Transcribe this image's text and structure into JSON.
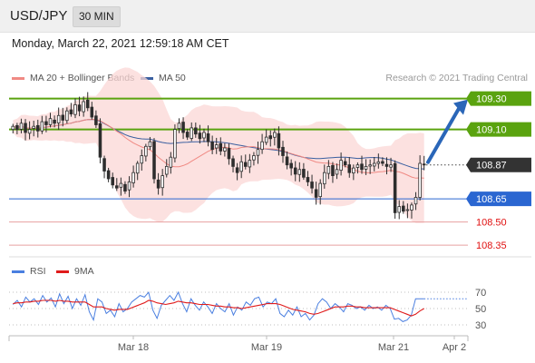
{
  "header": {
    "symbol": "USD/JPY",
    "timeframe": "30 MIN",
    "datetime": "Monday, March 22, 2021 12:59:18 AM CET"
  },
  "legend": {
    "ma20_label": "MA 20 + Bollinger Bands",
    "ma50_label": "MA 50",
    "rsi_label": "RSI",
    "rsi_ma_label": "9MA",
    "credit": "Research © 2021 Trading Central"
  },
  "colors": {
    "resistance": "#5aa30f",
    "support": "#2a66d1",
    "level_red": "#e8a0a0",
    "label_red_text": "#e01010",
    "candle": "#2d2d2d",
    "band_fill": "#fbd7d5",
    "ma20": "#f08a84",
    "ma50": "#3a5fa0",
    "rsi": "#4a7fe0",
    "rsi_ma": "#e01b1b",
    "arrow": "#2a66b8"
  },
  "chart_data": [
    {
      "type": "candlestick",
      "title": "",
      "ylim": [
        108.28,
        109.38
      ],
      "x_tick_labels": [
        "Mar 18",
        "Mar 19",
        "Mar 21",
        "Apr 2"
      ],
      "close_series": [
        109.12,
        109.1,
        109.14,
        109.08,
        109.1,
        109.12,
        109.09,
        109.15,
        109.13,
        109.17,
        109.14,
        109.19,
        109.16,
        109.22,
        109.2,
        109.26,
        109.22,
        109.28,
        109.24,
        109.18,
        109.13,
        108.92,
        108.83,
        108.78,
        108.74,
        108.72,
        108.75,
        108.7,
        108.76,
        108.82,
        108.88,
        108.93,
        108.99,
        109.02,
        108.78,
        108.72,
        108.8,
        108.86,
        108.92,
        109.1,
        109.14,
        109.08,
        109.05,
        109.11,
        109.07,
        109.04,
        109.08,
        109.02,
        108.97,
        109.0,
        108.96,
        108.98,
        108.91,
        108.86,
        108.82,
        108.89,
        108.86,
        108.9,
        108.93,
        108.97,
        109.02,
        109.05,
        109.04,
        109.08,
        108.98,
        108.93,
        108.87,
        108.85,
        108.81,
        108.84,
        108.79,
        108.76,
        108.72,
        108.66,
        108.75,
        108.82,
        108.86,
        108.8,
        108.84,
        108.9,
        108.87,
        108.82,
        108.85,
        108.87,
        108.84,
        108.86,
        108.87,
        108.88,
        108.89,
        108.88,
        108.86,
        108.87,
        108.56,
        108.6,
        108.57,
        108.58,
        108.61,
        108.66,
        108.88,
        108.87
      ],
      "levels": [
        {
          "label": "109.30",
          "value": 109.3,
          "kind": "resistance"
        },
        {
          "label": "109.10",
          "value": 109.1,
          "kind": "resistance"
        },
        {
          "label": "108.87",
          "value": 108.87,
          "kind": "current"
        },
        {
          "label": "108.65",
          "value": 108.65,
          "kind": "support"
        },
        {
          "label": "108.50",
          "value": 108.5,
          "kind": "minor"
        },
        {
          "label": "108.35",
          "value": 108.35,
          "kind": "minor"
        }
      ]
    },
    {
      "type": "line",
      "name": "RSI",
      "ylim": [
        20,
        80
      ],
      "y_tick_labels": [
        "70",
        "50",
        "30"
      ],
      "y_ticks": [
        70,
        50,
        30
      ],
      "series": [
        {
          "name": "RSI",
          "values": [
            55,
            60,
            52,
            64,
            58,
            62,
            55,
            66,
            58,
            63,
            52,
            68,
            56,
            65,
            50,
            62,
            54,
            67,
            46,
            36,
            62,
            58,
            44,
            48,
            40,
            56,
            46,
            50,
            58,
            62,
            66,
            64,
            70,
            48,
            38,
            54,
            60,
            66,
            60,
            70,
            56,
            46,
            62,
            54,
            48,
            58,
            52,
            44,
            56,
            50,
            46,
            56,
            42,
            52,
            48,
            58,
            54,
            62,
            64,
            52,
            58,
            56,
            62,
            44,
            40,
            48,
            42,
            52,
            40,
            44,
            36,
            42,
            56,
            62,
            58,
            50,
            56,
            52,
            46,
            56,
            54,
            50,
            52,
            48,
            54,
            50,
            52,
            48,
            54,
            50,
            37,
            38,
            34,
            36,
            42,
            62,
            62,
            62
          ]
        },
        {
          "name": "9MA",
          "values": [
            56,
            57,
            57,
            58,
            58,
            59,
            59,
            60,
            60,
            60,
            59,
            60,
            59,
            59,
            58,
            58,
            58,
            58,
            55,
            52,
            52,
            52,
            50,
            49,
            48,
            49,
            49,
            49,
            51,
            53,
            55,
            57,
            60,
            59,
            57,
            56,
            55,
            56,
            57,
            59,
            58,
            57,
            57,
            56,
            55,
            55,
            55,
            54,
            53,
            53,
            52,
            52,
            51,
            51,
            50,
            51,
            52,
            53,
            54,
            55,
            56,
            56,
            56,
            55,
            53,
            51,
            49,
            48,
            47,
            46,
            44,
            43,
            44,
            46,
            48,
            50,
            52,
            52,
            52,
            53,
            53,
            52,
            52,
            51,
            51,
            51,
            51,
            51,
            51,
            51,
            49,
            47,
            45,
            43,
            41,
            43,
            47,
            50
          ]
        }
      ]
    }
  ]
}
